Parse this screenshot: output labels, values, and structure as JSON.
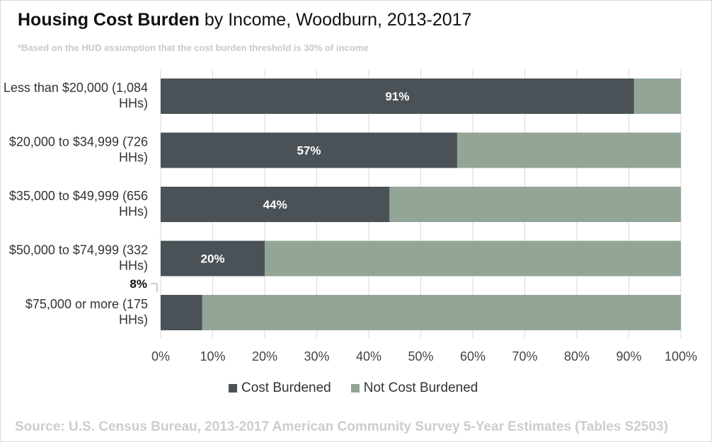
{
  "title_bold": "Housing Cost Burden",
  "title_rest": " by Income, Woodburn, 2013-2017",
  "subtitle": "*Based on the HUD assumption that the cost burden threshold is 30% of income",
  "source": "Source: U.S. Census Bureau, 2013-2017 American Community Survey 5-Year Estimates (Tables S2503)",
  "colors": {
    "cost_burdened": "#4a5257",
    "not_cost_burdened": "#92a597",
    "grid": "#d9d9d9"
  },
  "chart_data": {
    "type": "bar",
    "orientation": "horizontal",
    "stacked": true,
    "title": "Housing Cost Burden by Income, Woodburn, 2013-2017",
    "categories": [
      "Less than $20,000 (1,084 HHs)",
      "$20,000 to $34,999 (726 HHs)",
      "$35,000 to $49,999 (656 HHs)",
      "$50,000 to $74,999 (332 HHs)",
      "$75,000 or more (175 HHs)"
    ],
    "category_lines": [
      [
        "Less than $20,000 (1,084",
        "HHs)"
      ],
      [
        "$20,000 to $34,999 (726",
        "HHs)"
      ],
      [
        "$35,000 to $49,999 (656",
        "HHs)"
      ],
      [
        "$50,000 to $74,999 (332",
        "HHs)"
      ],
      [
        "$75,000 or more (175",
        "HHs)"
      ]
    ],
    "series": [
      {
        "name": "Cost Burdened",
        "values": [
          91,
          57,
          44,
          20,
          8
        ]
      },
      {
        "name": "Not Cost Burdened",
        "values": [
          9,
          43,
          56,
          80,
          92
        ]
      }
    ],
    "data_labels": [
      "91%",
      "57%",
      "44%",
      "20%",
      "8%"
    ],
    "xticks": [
      "0%",
      "10%",
      "20%",
      "30%",
      "40%",
      "50%",
      "60%",
      "70%",
      "80%",
      "90%",
      "100%"
    ],
    "xlim": [
      0,
      100
    ],
    "grid": true,
    "legend_position": "bottom"
  }
}
